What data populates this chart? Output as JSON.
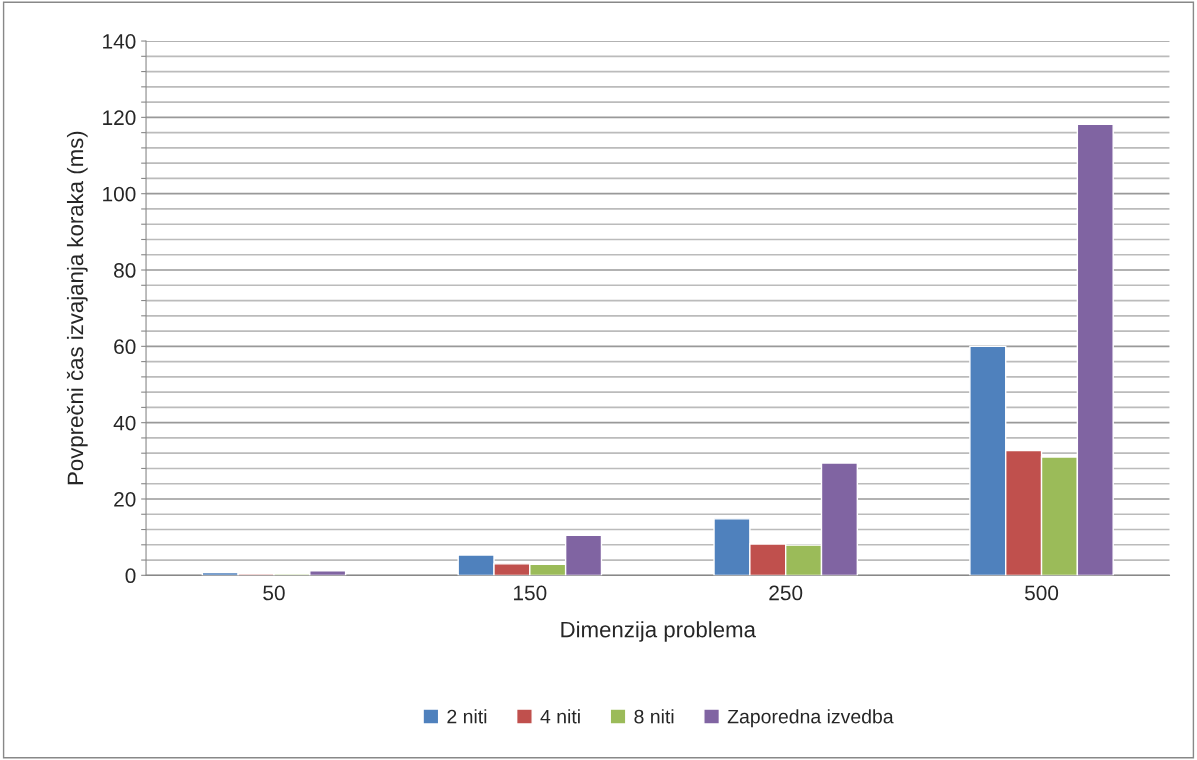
{
  "chart_data": {
    "type": "bar",
    "xlabel": "Dimenzija problema",
    "ylabel": "Povprečni čas izvajanja koraka (ms)",
    "categories": [
      "50",
      "150",
      "250",
      "500"
    ],
    "series": [
      {
        "name": "2 niti",
        "color": "#4f81bd",
        "values": [
          0.7,
          5.3,
          14.8,
          60
        ]
      },
      {
        "name": "4 niti",
        "color": "#c0504d",
        "values": [
          0.4,
          3.0,
          8.2,
          32.7
        ]
      },
      {
        "name": "8 niti",
        "color": "#9bbb59",
        "values": [
          0.4,
          2.9,
          7.9,
          31.0
        ]
      },
      {
        "name": "Zaporedna izvedba",
        "color": "#8064a2",
        "values": [
          1.2,
          10.5,
          29.4,
          118.2
        ]
      }
    ],
    "ylim": [
      0,
      140
    ],
    "yticks": [
      0,
      {
        "value": 4,
        "label": null
      },
      {
        "value": 8,
        "label": null
      },
      {
        "value": 12,
        "label": null
      },
      {
        "value": 16,
        "label": null
      },
      20,
      {
        "value": 24,
        "label": null
      },
      {
        "value": 28,
        "label": null
      },
      {
        "value": 32,
        "label": null
      },
      {
        "value": 36,
        "label": null
      },
      40,
      {
        "value": 44,
        "label": null
      },
      {
        "value": 48,
        "label": null
      },
      {
        "value": 52,
        "label": null
      },
      {
        "value": 56,
        "label": null
      },
      60,
      {
        "value": 64,
        "label": null
      },
      {
        "value": 68,
        "label": null
      },
      {
        "value": 72,
        "label": null
      },
      {
        "value": 76,
        "label": null
      },
      80,
      {
        "value": 84,
        "label": null
      },
      {
        "value": 88,
        "label": null
      },
      {
        "value": 92,
        "label": null
      },
      {
        "value": 96,
        "label": null
      },
      100,
      {
        "value": 104,
        "label": null
      },
      {
        "value": 108,
        "label": null
      },
      {
        "value": 112,
        "label": null
      },
      {
        "value": 116,
        "label": null
      },
      120,
      {
        "value": 124,
        "label": null
      },
      {
        "value": 128,
        "label": null
      },
      {
        "value": 132,
        "label": null
      },
      {
        "value": 136,
        "label": null
      },
      140
    ],
    "grid": "y",
    "legend": "bottom"
  }
}
